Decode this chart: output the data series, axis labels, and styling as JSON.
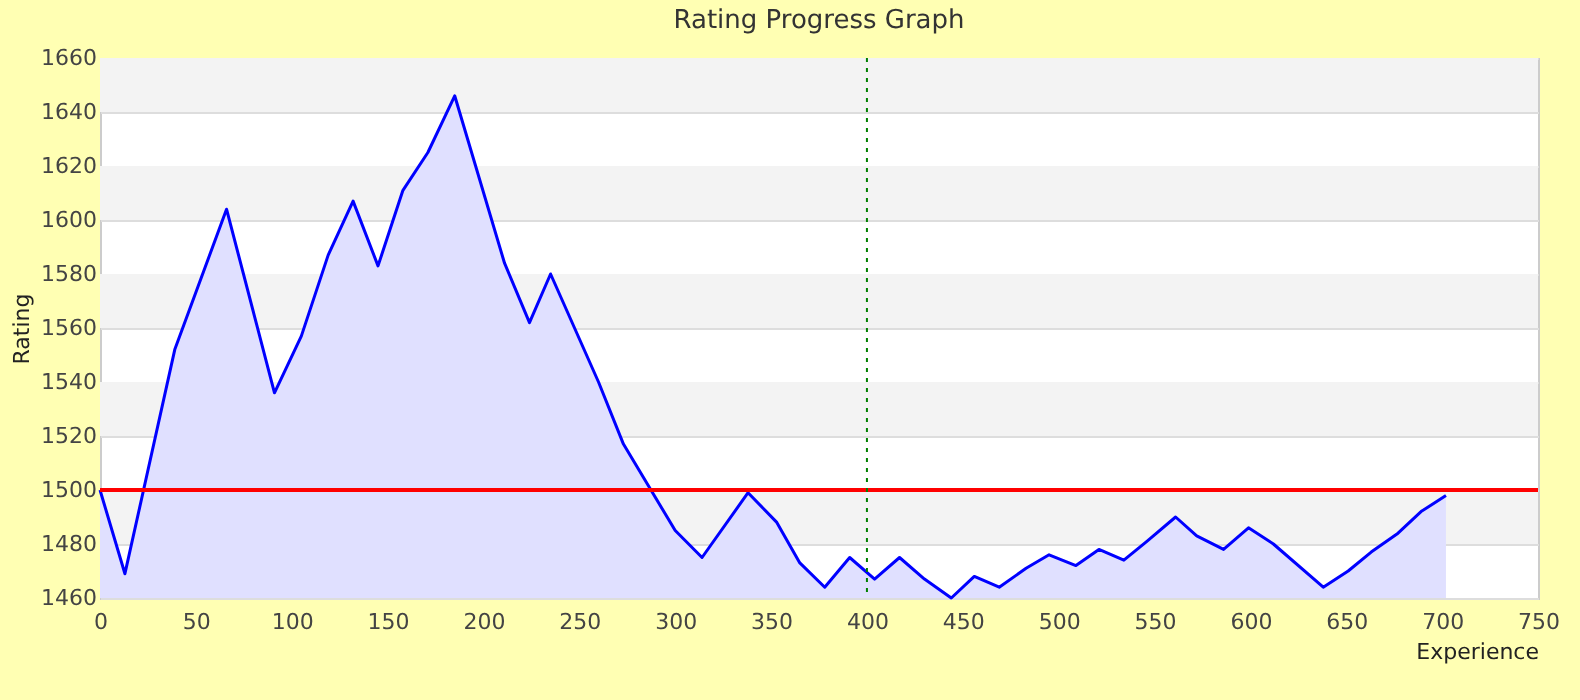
{
  "chart_data": {
    "type": "area",
    "title": "Rating Progress Graph",
    "xlabel": "Experience",
    "ylabel": "Rating",
    "x": [
      0,
      13,
      39,
      66,
      91,
      105,
      119,
      132,
      145,
      158,
      171,
      185,
      211,
      224,
      235,
      260,
      273,
      300,
      314,
      338,
      353,
      365,
      378,
      391,
      404,
      417,
      430,
      444,
      456,
      469,
      483,
      495,
      509,
      521,
      534,
      546,
      561,
      572,
      586,
      599,
      612,
      638,
      651,
      663,
      677,
      689,
      702
    ],
    "series": [
      {
        "color": "#0000ff",
        "values": [
          1500,
          1469,
          1552,
          1604,
          1536,
          1557,
          1587,
          1607,
          1583,
          1611,
          1625,
          1646,
          1584,
          1562,
          1580,
          1540,
          1517,
          1485,
          1475,
          1499,
          1488,
          1473,
          1464,
          1475,
          1467,
          1475,
          1467,
          1460,
          1468,
          1464,
          1471,
          1476,
          1472,
          1478,
          1474,
          1481,
          1490,
          1483,
          1478,
          1486,
          1480,
          1464,
          1470,
          1477,
          1484,
          1492,
          1498
        ]
      }
    ],
    "xlim": [
      0,
      750
    ],
    "xticks": [
      0,
      50,
      100,
      150,
      200,
      250,
      300,
      350,
      400,
      450,
      500,
      550,
      600,
      650,
      700,
      750
    ],
    "ylim": [
      1460,
      1660
    ],
    "yticks": [
      1460,
      1480,
      1500,
      1520,
      1540,
      1560,
      1580,
      1600,
      1620,
      1640,
      1660
    ],
    "grid": "y",
    "legend": false,
    "ref_lines": [
      {
        "axis": "y",
        "value": 1500,
        "color": "#ff0000",
        "line_style": "solid"
      },
      {
        "axis": "x",
        "value": 400,
        "color": "#008000",
        "line_style": "dotted"
      }
    ]
  }
}
